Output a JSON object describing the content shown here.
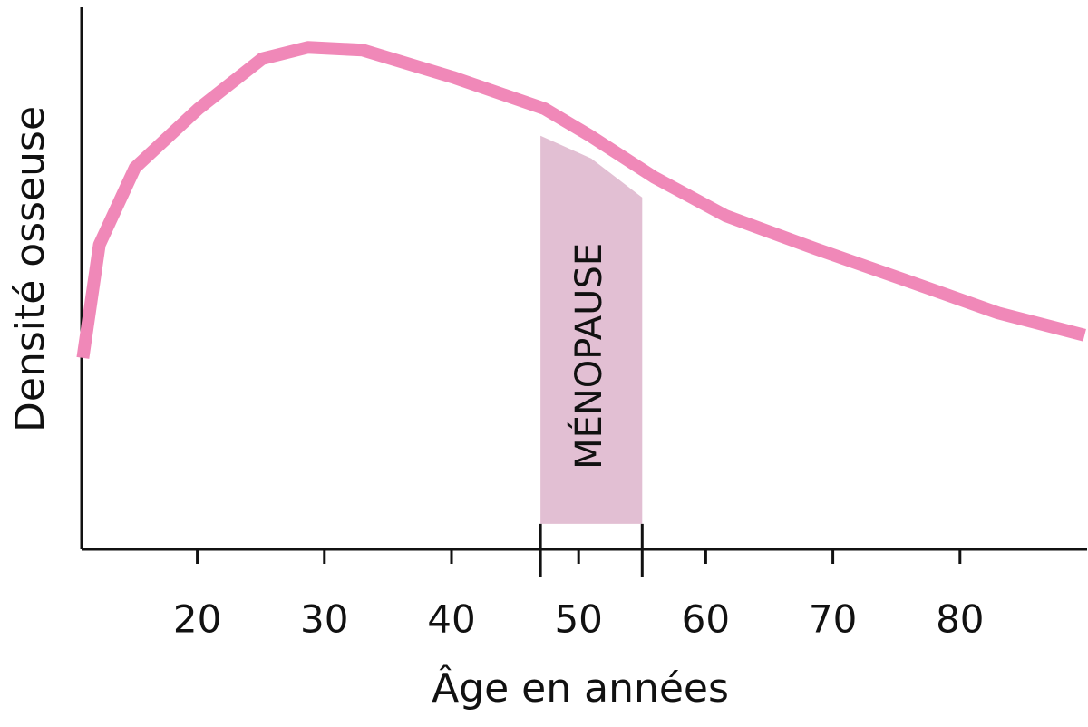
{
  "chart_data": {
    "type": "line",
    "x_label": "Âge en années",
    "y_label": "Densité osseuse",
    "xlim": [
      10.9,
      90
    ],
    "ylim": [
      0,
      100
    ],
    "xticks": [
      20,
      30,
      40,
      50,
      60,
      70,
      80
    ],
    "series": [
      {
        "color": "#f088b8",
        "x": [
          11.0,
          12.3,
          15.1,
          20.1,
          25.1,
          28.7,
          33.0,
          40.1,
          47.3,
          50.9,
          55.9,
          61.6,
          68.7,
          75.9,
          83.0,
          89.8
        ],
        "values": [
          35.3,
          56.2,
          70.4,
          81.3,
          90.5,
          92.6,
          92.1,
          87.1,
          81.3,
          76.3,
          68.7,
          61.5,
          55.4,
          49.5,
          43.6,
          39.5
        ]
      }
    ],
    "band": {
      "label": "MÉNOPAUSE",
      "color": "#e2bfd3",
      "x": [
        47,
        51,
        55
      ],
      "top": [
        76.3,
        72.1,
        64.9
      ],
      "bottom": 4.7
    }
  }
}
